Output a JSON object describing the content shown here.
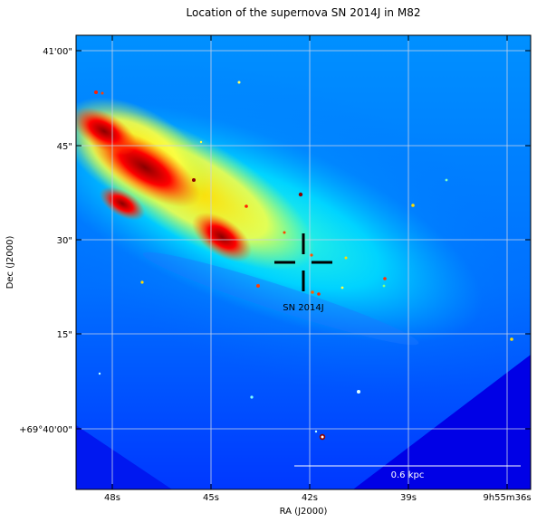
{
  "title": "Location of the supernova SN 2014J in M82",
  "axes": {
    "xlabel": "RA (J2000)",
    "ylabel": "Dec (J2000)",
    "x_ticks": [
      "48s",
      "45s",
      "42s",
      "39s",
      "9h55m36s"
    ],
    "y_ticks": [
      "41'00\"",
      "45\"",
      "30\"",
      "15\"",
      "+69°40'00\""
    ]
  },
  "annotations": {
    "target_label": "SN 2014J",
    "scale_bar_label": "0.6 kpc"
  },
  "colors": {
    "colormap": "jet",
    "low": "#0000ff",
    "mid": "#00ffff",
    "high": "#ffff00",
    "peak": "#8b0000",
    "grid": "#c8d2e6",
    "marker": "#000000",
    "scale_bar": "#ffffff"
  }
}
